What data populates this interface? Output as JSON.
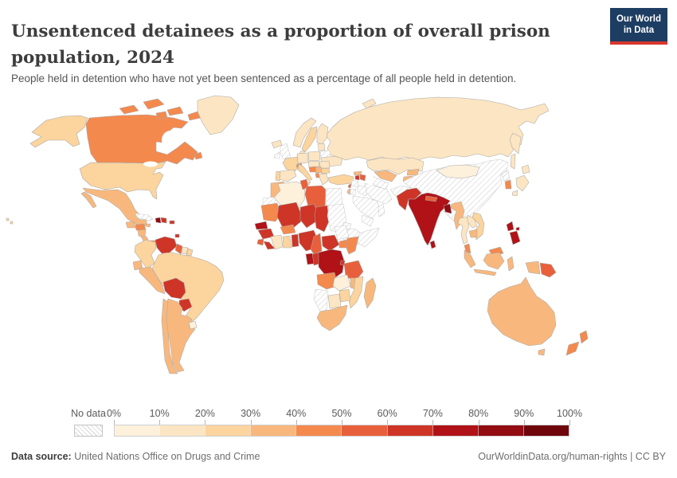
{
  "header": {
    "title": "Unsentenced detainees as a proportion of overall prison population, 2024",
    "subtitle": "People held in detention who have not yet been sentenced as a percentage of all people held in detention.",
    "logo": {
      "line1": "Our World",
      "line2": "in Data",
      "bg": "#1d3d63",
      "accent": "#d7382e"
    }
  },
  "legend": {
    "no_data_label": "No data",
    "ticks": [
      "0%",
      "10%",
      "20%",
      "30%",
      "40%",
      "50%",
      "60%",
      "70%",
      "80%",
      "90%",
      "100%"
    ],
    "bin_labels": [
      "0-10%",
      "10-20%",
      "20-30%",
      "30-40%",
      "40-50%",
      "50-60%",
      "60-70%",
      "70-80%",
      "80-90%",
      "90-100%"
    ],
    "colors": [
      "#FDF1DC",
      "#FCE5C2",
      "#FBD49E",
      "#F8B87D",
      "#F4894E",
      "#E8603B",
      "#CE3527",
      "#B01217",
      "#920C12",
      "#6E060C"
    ]
  },
  "footer": {
    "source_label": "Data source:",
    "source_value": " United Nations Office on Drugs and Crime",
    "right": "OurWorldinData.org/human-rights | CC BY"
  },
  "chart_data": {
    "type": "choropleth",
    "title": "Unsentenced detainees as a proportion of overall prison population, 2024",
    "unit": "% of prison population held unsentenced",
    "no_data_style": "hatched",
    "scale_ticks_percent": [
      0,
      10,
      20,
      30,
      40,
      50,
      60,
      70,
      80,
      90,
      100
    ],
    "countries": {
      "united-states": "20-30%",
      "canada": "40-50%",
      "greenland": "10-20%",
      "mexico": "30-40%",
      "guatemala": "30-40%",
      "honduras": "40-50%",
      "nicaragua": "30-40%",
      "costa-rica": "30-40%",
      "panama": "40-50%",
      "cuba": "no-data",
      "jamaica": "30-40%",
      "haiti": "80-90%",
      "dominican-republic": "60-70%",
      "puerto-rico": "60-70%",
      "trinidad-and-tobago": "60-70%",
      "colombia": "20-30%",
      "venezuela": "60-70%",
      "guyana": "50-60%",
      "suriname": "10-20%",
      "french-guiana": "20-30%",
      "ecuador": "30-40%",
      "peru": "30-40%",
      "brazil": "20-30%",
      "bolivia": "60-70%",
      "paraguay": "60-70%",
      "uruguay": "0-10%",
      "argentina": "30-40%",
      "chile": "30-40%",
      "iceland": "10-20%",
      "united-kingdom": "no-data",
      "ireland": "no-data",
      "norway": "10-20%",
      "sweden": "20-30%",
      "finland": "10-20%",
      "denmark": "10-20%",
      "germany": "10-20%",
      "poland": "10-20%",
      "baltic-states": "10-20%",
      "belarus": "no-data",
      "ukraine": "10-20%",
      "france": "20-30%",
      "switzerland": "40-50%",
      "austria": "10-20%",
      "romania": "10-20%",
      "bulgaria": "20-30%",
      "serbia": "30-40%",
      "croatia": "40-50%",
      "italy": "20-30%",
      "spain": "10-20%",
      "portugal": "20-30%",
      "albania": "40-50%",
      "greece": "10-20%",
      "turkey": "20-30%",
      "georgia": "30-40%",
      "armenia": "60-70%",
      "azerbaijan": "50-60%",
      "russia": "10-20%",
      "kazakhstan": "10-20%",
      "uzbekistan": "30-40%",
      "turkmenistan": "no-data",
      "kyrgyzstan": "30-40%",
      "tajikistan": "30-40%",
      "afghanistan": "no-data",
      "iran": "no-data",
      "iraq": "no-data",
      "syria": "no-data",
      "lebanon": "50-60%",
      "israel": "30-40%",
      "jordan": "no-data",
      "saudi-arabia": "no-data",
      "yemen": "no-data",
      "oman": "no-data",
      "china": "no-data",
      "mongolia": "0-10%",
      "north-korea": "no-data",
      "south-korea": "40-50%",
      "japan": "10-20%",
      "pakistan": "60-70%",
      "india": "70-80%",
      "nepal": "50-60%",
      "bangladesh": "80-90%",
      "sri-lanka": "70-80%",
      "myanmar": "30-40%",
      "thailand": "10-20%",
      "laos": "10-20%",
      "vietnam": "20-30%",
      "cambodia": "30-40%",
      "malaysia": "40-50%",
      "philippines": "70-80%",
      "indonesia": "30-40%",
      "papua-new-guinea": "50-60%",
      "australia": "30-40%",
      "new-zealand": "40-50%",
      "morocco": "30-40%",
      "western-sahara": "no-data",
      "algeria": "0-10%",
      "tunisia": "50-60%",
      "libya": "50-60%",
      "egypt": "no-data",
      "mauritania": "40-50%",
      "mali": "60-70%",
      "niger": "60-70%",
      "chad": "60-70%",
      "sudan": "no-data",
      "eritrea": "no-data",
      "ethiopia": "no-data",
      "somalia": "no-data",
      "senegal": "70-80%",
      "guinea": "60-70%",
      "sierra-leone": "50-60%",
      "liberia": "60-70%",
      "ivory-coast": "10-20%",
      "ghana": "20-30%",
      "burkina-faso": "40-50%",
      "benin": "60-70%",
      "nigeria": "60-70%",
      "cameroon": "50-60%",
      "central-african-republic": "60-70%",
      "south-sudan": "no-data",
      "uganda": "40-50%",
      "kenya": "40-50%",
      "rwanda": "60-70%",
      "democratic-republic-of-congo": "70-80%",
      "congo": "60-70%",
      "gabon": "70-80%",
      "tanzania": "50-60%",
      "angola": "40-50%",
      "zambia": "0-10%",
      "malawi": "30-40%",
      "mozambique": "20-30%",
      "zimbabwe": "20-30%",
      "botswana": "10-20%",
      "namibia": "no-data",
      "south-africa": "30-40%",
      "madagascar": "30-40%"
    }
  }
}
